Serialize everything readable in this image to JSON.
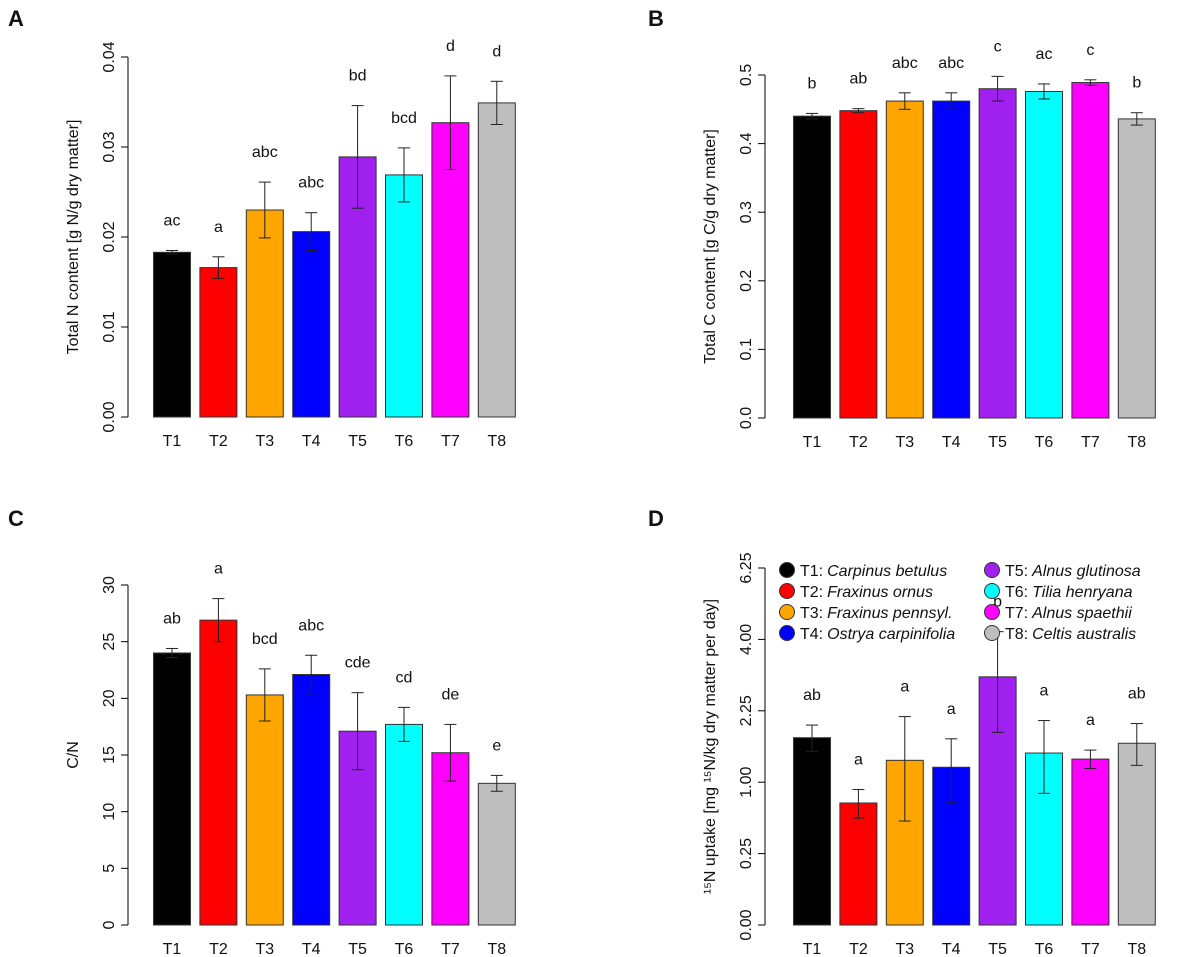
{
  "chart_data": [
    {
      "type": "bar",
      "panel": "A",
      "ylabel": "Total N content [g N/g dry matter]",
      "categories": [
        "T1",
        "T2",
        "T3",
        "T4",
        "T5",
        "T6",
        "T7",
        "T8"
      ],
      "values": [
        0.0183,
        0.0166,
        0.023,
        0.0206,
        0.0289,
        0.0269,
        0.0327,
        0.0349
      ],
      "errors": [
        0.0002,
        0.0012,
        0.0031,
        0.0021,
        0.0057,
        0.003,
        0.0052,
        0.0024
      ],
      "annotations": [
        "ac",
        "a",
        "abc",
        "abc",
        "bd",
        "bcd",
        "d",
        "d"
      ],
      "colors": [
        "#000000",
        "#ff0000",
        "#ffa500",
        "#0000ff",
        "#a020f0",
        "#00ffff",
        "#ff00ff",
        "#bebebe"
      ],
      "ylim": [
        0,
        0.04
      ],
      "yticks": [
        {
          "value": 0,
          "label": "0.00"
        },
        0.01,
        0.02,
        0.03,
        0.04
      ]
    },
    {
      "type": "bar",
      "panel": "B",
      "ylabel": "Total C content [g C/g dry matter]",
      "categories": [
        "T1",
        "T2",
        "T3",
        "T4",
        "T5",
        "T6",
        "T7",
        "T8"
      ],
      "values": [
        0.44,
        0.448,
        0.462,
        0.462,
        0.48,
        0.476,
        0.489,
        0.436
      ],
      "errors": [
        0.004,
        0.003,
        0.012,
        0.012,
        0.018,
        0.011,
        0.004,
        0.009
      ],
      "annotations": [
        "b",
        "ab",
        "abc",
        "abc",
        "c",
        "ac",
        "c",
        "b"
      ],
      "colors": [
        "#000000",
        "#ff0000",
        "#ffa500",
        "#0000ff",
        "#a020f0",
        "#00ffff",
        "#ff00ff",
        "#bebebe"
      ],
      "ylim": [
        0,
        0.5
      ],
      "yticks": [
        {
          "value": 0,
          "label": "0.0"
        },
        0.1,
        0.2,
        0.3,
        0.4,
        0.5
      ]
    },
    {
      "type": "bar",
      "panel": "C",
      "ylabel": "C/N",
      "categories": [
        "T1",
        "T2",
        "T3",
        "T4",
        "T5",
        "T6",
        "T7",
        "T8"
      ],
      "values": [
        24.0,
        26.9,
        20.3,
        22.1,
        17.1,
        17.7,
        15.2,
        12.5
      ],
      "errors": [
        0.4,
        1.9,
        2.3,
        1.7,
        3.4,
        1.5,
        2.5,
        0.7
      ],
      "annotations": [
        "ab",
        "a",
        "bcd",
        "abc",
        "cde",
        "cd",
        "de",
        "e"
      ],
      "colors": [
        "#000000",
        "#ff0000",
        "#ffa500",
        "#0000ff",
        "#a020f0",
        "#00ffff",
        "#ff00ff",
        "#bebebe"
      ],
      "ylim": [
        0,
        30
      ],
      "yticks": [
        0,
        5,
        10,
        15,
        20,
        25,
        30
      ]
    },
    {
      "type": "bar",
      "panel": "D",
      "ylabel": "¹⁵N uptake [mg ¹⁵N/kg dry matter per day]",
      "scale": "sqrt",
      "categories": [
        "T1",
        "T2",
        "T3",
        "T4",
        "T5",
        "T6",
        "T7",
        "T8"
      ],
      "values": [
        1.72,
        0.73,
        1.33,
        1.22,
        3.02,
        1.45,
        1.35,
        1.62
      ],
      "errors": [
        0.24,
        0.17,
        0.8,
        0.48,
        1.2,
        0.6,
        0.15,
        0.37
      ],
      "annotations": [
        "ab",
        "a",
        "a",
        "a",
        "b",
        "a",
        "a",
        "ab"
      ],
      "colors": [
        "#000000",
        "#ff0000",
        "#ffa500",
        "#0000ff",
        "#a020f0",
        "#00ffff",
        "#ff00ff",
        "#bebebe"
      ],
      "ylim": [
        0,
        6.25
      ],
      "yticks": [
        {
          "value": 0,
          "label": "0.00"
        },
        0.25,
        {
          "value": 1,
          "label": "1.00"
        },
        2.25,
        {
          "value": 4,
          "label": "4.00"
        },
        6.25
      ],
      "legend": [
        {
          "key": "T1:",
          "name": "Carpinus betulus"
        },
        {
          "key": "T2:",
          "name": "Fraxinus ornus"
        },
        {
          "key": "T3:",
          "name": "Fraxinus pennsyl."
        },
        {
          "key": "T4:",
          "name": "Ostrya carpinifolia"
        },
        {
          "key": "T5:",
          "name": "Alnus glutinosa"
        },
        {
          "key": "T6:",
          "name": "Tilia henryana"
        },
        {
          "key": "T7:",
          "name": "Alnus spaethii"
        },
        {
          "key": "T8:",
          "name": "Celtis australis"
        }
      ]
    }
  ]
}
